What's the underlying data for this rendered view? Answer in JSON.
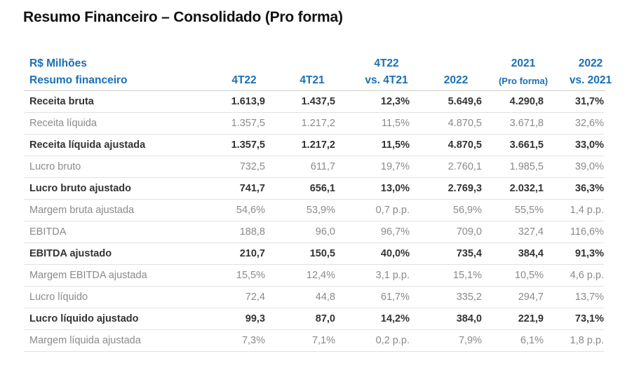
{
  "title": "Resumo Financeiro – Consolidado (Pro forma)",
  "header": {
    "unit": "R$ Milhões",
    "row_label": "Resumo financeiro",
    "cols": [
      {
        "line1": "",
        "line2": "4T22"
      },
      {
        "line1": "",
        "line2": "4T21"
      },
      {
        "line1": "4T22",
        "line2": "vs. 4T21"
      },
      {
        "line1": "",
        "line2": "2022"
      },
      {
        "line1": "2021",
        "line2": "(Pro forma)"
      },
      {
        "line1": "2022",
        "line2": "vs. 2021"
      }
    ]
  },
  "rows": [
    {
      "label": "Receita bruta",
      "bold": true,
      "v": [
        "1.613,9",
        "1.437,5",
        "12,3%",
        "5.649,6",
        "4.290,8",
        "31,7%"
      ]
    },
    {
      "label": "Receita líquida",
      "bold": false,
      "v": [
        "1.357,5",
        "1.217,2",
        "11,5%",
        "4.870,5",
        "3.671,8",
        "32,6%"
      ]
    },
    {
      "label": "Receita líquida ajustada",
      "bold": true,
      "v": [
        "1.357,5",
        "1.217,2",
        "11,5%",
        "4.870,5",
        "3.661,5",
        "33,0%"
      ]
    },
    {
      "label": "Lucro bruto",
      "bold": false,
      "v": [
        "732,5",
        "611,7",
        "19,7%",
        "2.760,1",
        "1.985,5",
        "39,0%"
      ]
    },
    {
      "label": "Lucro bruto ajustado",
      "bold": true,
      "v": [
        "741,7",
        "656,1",
        "13,0%",
        "2.769,3",
        "2.032,1",
        "36,3%"
      ]
    },
    {
      "label": "Margem bruta ajustada",
      "bold": false,
      "v": [
        "54,6%",
        "53,9%",
        "0,7 p.p.",
        "56,9%",
        "55,5%",
        "1,4 p.p."
      ]
    },
    {
      "label": "EBITDA",
      "bold": false,
      "v": [
        "188,8",
        "96,0",
        "96,7%",
        "709,0",
        "327,4",
        "116,6%"
      ]
    },
    {
      "label": "EBITDA ajustado",
      "bold": true,
      "v": [
        "210,7",
        "150,5",
        "40,0%",
        "735,4",
        "384,4",
        "91,3%"
      ]
    },
    {
      "label": "Margem EBITDA ajustada",
      "bold": false,
      "v": [
        "15,5%",
        "12,4%",
        "3,1 p.p.",
        "15,1%",
        "10,5%",
        "4,6 p.p."
      ]
    },
    {
      "label": "Lucro líquido",
      "bold": false,
      "v": [
        "72,4",
        "44,8",
        "61,7%",
        "335,2",
        "294,7",
        "13,7%"
      ]
    },
    {
      "label": "Lucro líquido ajustado",
      "bold": true,
      "v": [
        "99,3",
        "87,0",
        "14,2%",
        "384,0",
        "221,9",
        "73,1%"
      ]
    },
    {
      "label": "Margem líquida ajustada",
      "bold": false,
      "v": [
        "7,3%",
        "7,1%",
        "0,2 p.p.",
        "7,9%",
        "6,1%",
        "1,8 p.p."
      ]
    }
  ],
  "colors": {
    "header_blue": "#1a6fb5",
    "bold_text": "#333333",
    "light_text": "#8a8a8a"
  }
}
